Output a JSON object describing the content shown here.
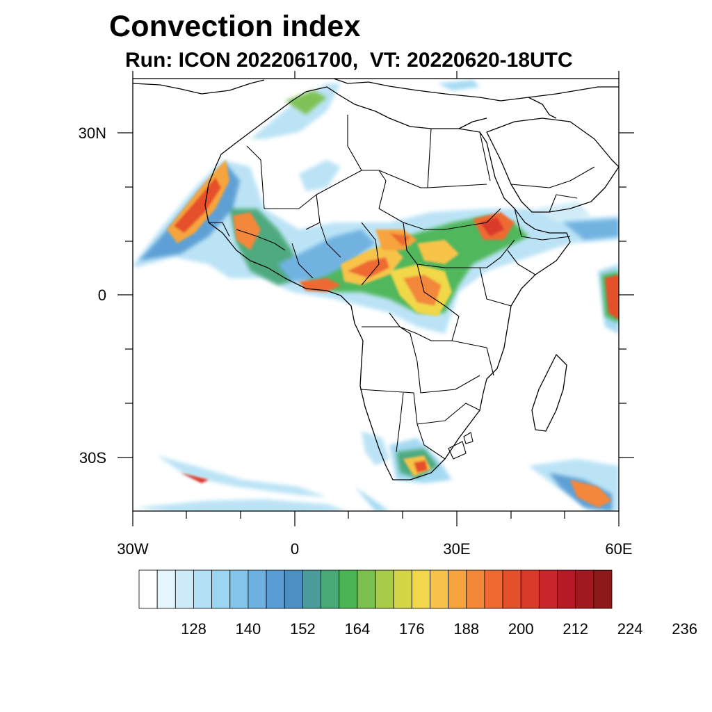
{
  "title": "Convection index",
  "subtitle": "Run: ICON 2022061700,  VT: 20220620-18UTC",
  "map": {
    "projection": "cylindrical-equidistant",
    "lon_range": [
      -30,
      60
    ],
    "lat_range": [
      -40,
      40
    ],
    "x_tick_labels": [
      "30W",
      "0",
      "30E",
      "60E"
    ],
    "y_tick_labels": [
      "30N",
      "0",
      "30S"
    ],
    "field": "convection index",
    "colormap_colors": [
      "#ffffff",
      "#e6f4fb",
      "#cdeaf8",
      "#b4e0f5",
      "#9bd5f1",
      "#85c4ea",
      "#6eb0e0",
      "#5a9dd4",
      "#4c8fc0",
      "#4b9c9a",
      "#49a878",
      "#4bb555",
      "#7cc04f",
      "#a9cb4a",
      "#d4d547",
      "#f0d84a",
      "#f8c34a",
      "#f6a43e",
      "#f3873a",
      "#ee6a32",
      "#e5502c",
      "#d93b2b",
      "#c8272b",
      "#b51b27",
      "#a11a20",
      "#8c1a1a"
    ],
    "colorbar_labels": [
      "128",
      "140",
      "152",
      "164",
      "176",
      "188",
      "200",
      "212",
      "224",
      "236"
    ]
  }
}
